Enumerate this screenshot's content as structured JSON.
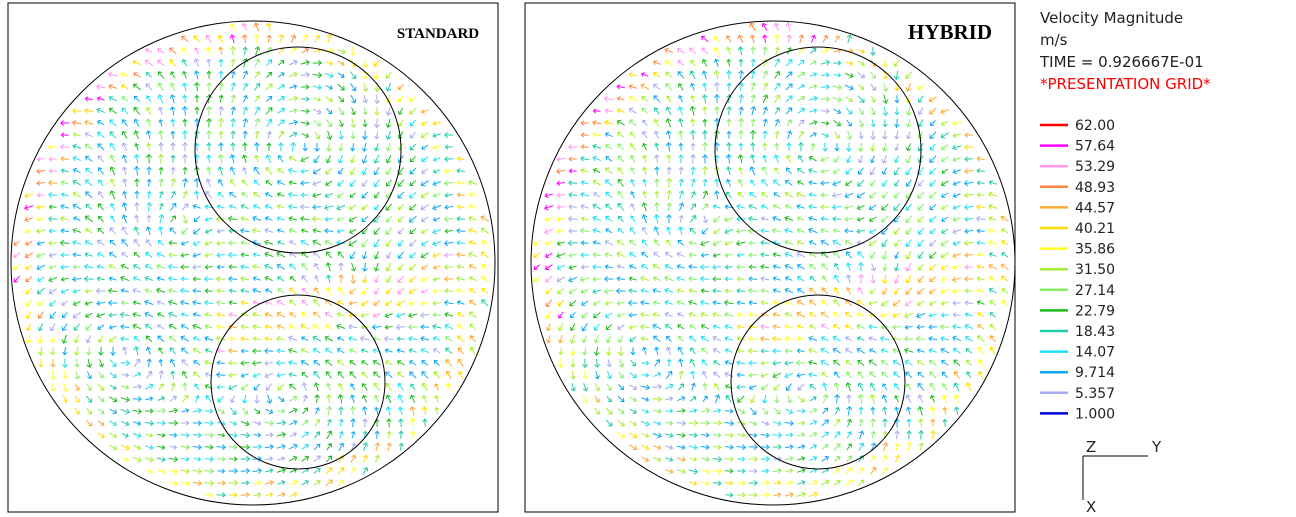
{
  "panels": [
    {
      "label": "STANDARD"
    },
    {
      "label": "HYBRID"
    }
  ],
  "legend": {
    "title": "Velocity Magnitude",
    "unit": "m/s",
    "time": "TIME = 0.926667E-01",
    "grid": "*PRESENTATION GRID*",
    "levels": [
      {
        "label": "62.00",
        "color": "#ff0000"
      },
      {
        "label": "57.64",
        "color": "#ff00ff"
      },
      {
        "label": "53.29",
        "color": "#ff99ee"
      },
      {
        "label": "48.93",
        "color": "#ff8844"
      },
      {
        "label": "44.57",
        "color": "#ffaa33"
      },
      {
        "label": "40.21",
        "color": "#ffdd00"
      },
      {
        "label": "35.86",
        "color": "#ffff22"
      },
      {
        "label": "31.50",
        "color": "#aaee33"
      },
      {
        "label": "27.14",
        "color": "#88ee66"
      },
      {
        "label": "22.79",
        "color": "#22bb22"
      },
      {
        "label": "18.43",
        "color": "#22ccaa"
      },
      {
        "label": "14.07",
        "color": "#22ddee"
      },
      {
        "label": "9.714",
        "color": "#11aaee"
      },
      {
        "label": "5.357",
        "color": "#aaaaee"
      },
      {
        "label": "1.000",
        "color": "#0000dd"
      }
    ]
  },
  "axes": {
    "z": "Z",
    "y": "Y",
    "x": "X"
  }
}
